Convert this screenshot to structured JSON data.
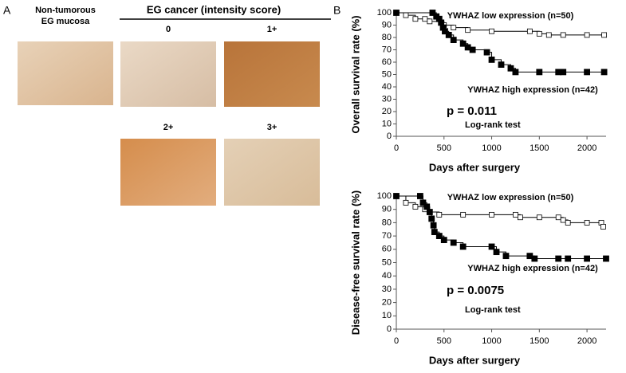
{
  "panel_a": {
    "label": "A",
    "normal_title": [
      "Non-tumorous",
      "EG mucosa"
    ],
    "cancer_title": "EG cancer (intensity score)",
    "scores": [
      "0",
      "1+",
      "2+",
      "3+"
    ]
  },
  "panel_b": {
    "label": "B"
  },
  "chart_data": [
    {
      "type": "line",
      "step": true,
      "ylabel": "Overall survival rate (%)",
      "xlabel": "Days after surgery",
      "xlim": [
        0,
        2200
      ],
      "ylim": [
        0,
        100
      ],
      "xticks": [
        0,
        500,
        1000,
        1500,
        2000
      ],
      "yticks": [
        0,
        10,
        20,
        30,
        40,
        50,
        60,
        70,
        80,
        90,
        100
      ],
      "series": [
        {
          "name": "YWHAZ low expression (n=50)",
          "color": "#000000",
          "marker": "open",
          "x": [
            0,
            100,
            200,
            300,
            350,
            500,
            600,
            750,
            1000,
            1400,
            1500,
            1600,
            1750,
            2000,
            2180
          ],
          "values": [
            100,
            98,
            95,
            95,
            93,
            90,
            88,
            86,
            85,
            85,
            83,
            82,
            82,
            82,
            82
          ]
        },
        {
          "name": "YWHAZ high expression (n=42)",
          "color": "#000000",
          "marker": "filled",
          "x": [
            0,
            380,
            420,
            450,
            470,
            490,
            510,
            550,
            600,
            700,
            750,
            800,
            950,
            1000,
            1100,
            1200,
            1250,
            1500,
            1700,
            1750,
            2000,
            2180
          ],
          "values": [
            100,
            100,
            97,
            95,
            92,
            88,
            85,
            82,
            78,
            75,
            72,
            70,
            68,
            62,
            58,
            55,
            52,
            52,
            52,
            52,
            52,
            52
          ]
        }
      ],
      "annotations": [
        "p = 0.011",
        "Log-rank test"
      ]
    },
    {
      "type": "line",
      "step": true,
      "ylabel": "Disease-free survival rate (%)",
      "xlabel": "Days after surgery",
      "xlim": [
        0,
        2200
      ],
      "ylim": [
        0,
        100
      ],
      "xticks": [
        0,
        500,
        1000,
        1500,
        2000
      ],
      "yticks": [
        0,
        10,
        20,
        30,
        40,
        50,
        60,
        70,
        80,
        90,
        100
      ],
      "series": [
        {
          "name": "YWHAZ low expression (n=50)",
          "color": "#000000",
          "marker": "open",
          "x": [
            0,
            100,
            200,
            300,
            350,
            450,
            700,
            1000,
            1250,
            1300,
            1500,
            1700,
            1750,
            1800,
            2000,
            2150,
            2170
          ],
          "values": [
            100,
            95,
            92,
            90,
            88,
            86,
            86,
            86,
            86,
            84,
            84,
            84,
            82,
            80,
            80,
            80,
            77
          ]
        },
        {
          "name": "YWHAZ high expression (n=42)",
          "color": "#000000",
          "marker": "filled",
          "x": [
            0,
            250,
            280,
            320,
            350,
            370,
            390,
            400,
            450,
            500,
            600,
            700,
            1000,
            1050,
            1150,
            1400,
            1450,
            1700,
            1800,
            2000,
            2200
          ],
          "values": [
            100,
            100,
            95,
            92,
            88,
            83,
            78,
            73,
            70,
            67,
            65,
            62,
            62,
            58,
            55,
            55,
            53,
            53,
            53,
            53,
            53
          ]
        }
      ],
      "annotations": [
        "p = 0.0075",
        "Log-rank test"
      ]
    }
  ]
}
